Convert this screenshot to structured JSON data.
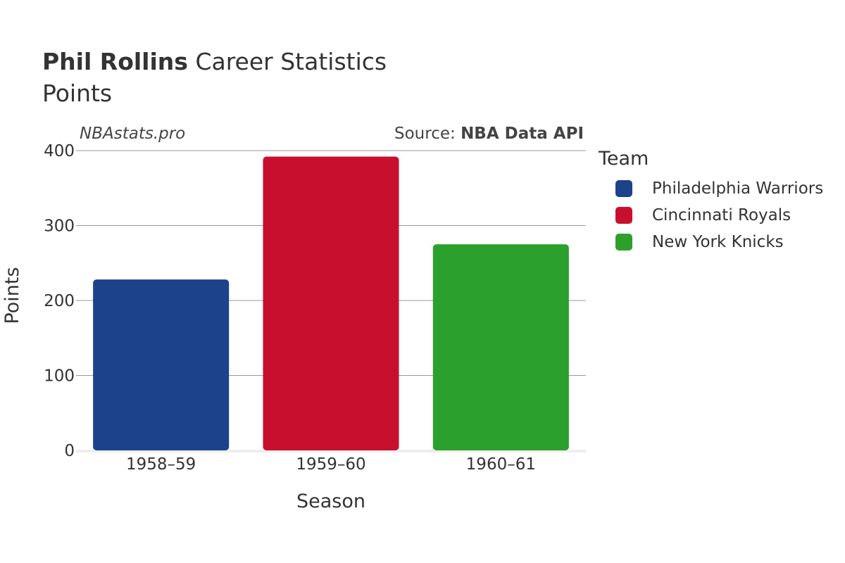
{
  "header": {
    "player": "Phil Rollins",
    "title_rest": "Career Statistics",
    "subtitle": "Points"
  },
  "watermark": "NBAstats.pro",
  "source": {
    "prefix": "Source: ",
    "name": "NBA Data API"
  },
  "legend": {
    "title": "Team",
    "position": "right",
    "items": [
      {
        "label": "Philadelphia Warriors",
        "color": "#1b428a"
      },
      {
        "label": "Cincinnati Royals",
        "color": "#c8102e"
      },
      {
        "label": "New York Knicks",
        "color": "#2ca02c"
      }
    ]
  },
  "chart_data": {
    "type": "bar",
    "categories": [
      "1958–59",
      "1959–60",
      "1960–61"
    ],
    "values": [
      228,
      392,
      275
    ],
    "colors": [
      "#1b428a",
      "#c8102e",
      "#2ca02c"
    ],
    "teams": [
      "Philadelphia Warriors",
      "Cincinnati Royals",
      "New York Knicks"
    ],
    "xlabel": "Season",
    "ylabel": "Points",
    "ylim": [
      0,
      400
    ],
    "yticks": [
      0,
      100,
      200,
      300,
      400
    ],
    "grid": true
  }
}
